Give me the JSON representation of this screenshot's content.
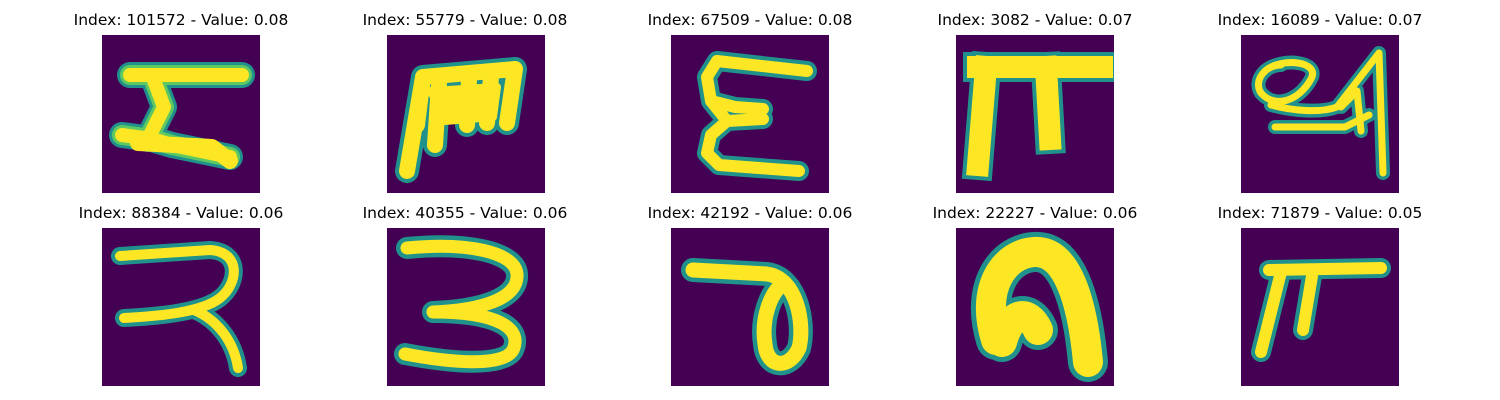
{
  "figure": {
    "colors": {
      "background": "#440154",
      "edge": "#21918c",
      "mid": "#5ec962",
      "stroke": "#fde725"
    },
    "panels": [
      {
        "title": "Index: 101572 - Value: 0.08",
        "glyph": "sigma-like-glyph"
      },
      {
        "title": "Index: 55779 - Value: 0.08",
        "glyph": "m-like-glyph"
      },
      {
        "title": "Index: 67509 - Value: 0.08",
        "glyph": "e-like-glyph"
      },
      {
        "title": "Index: 3082 - Value: 0.07",
        "glyph": "pi-like-glyph"
      },
      {
        "title": "Index: 16089 - Value: 0.07",
        "glyph": "24-like-glyph"
      },
      {
        "title": "Index: 88384 - Value: 0.06",
        "glyph": "backwards-r-glyph"
      },
      {
        "title": "Index: 40355 - Value: 0.06",
        "glyph": "3-like-glyph"
      },
      {
        "title": "Index: 42192 - Value: 0.06",
        "glyph": "looped-glyph"
      },
      {
        "title": "Index: 22227 - Value: 0.06",
        "glyph": "arch-glyph"
      },
      {
        "title": "Index: 71879 - Value: 0.05",
        "glyph": "pi-like-glyph-small"
      }
    ]
  }
}
